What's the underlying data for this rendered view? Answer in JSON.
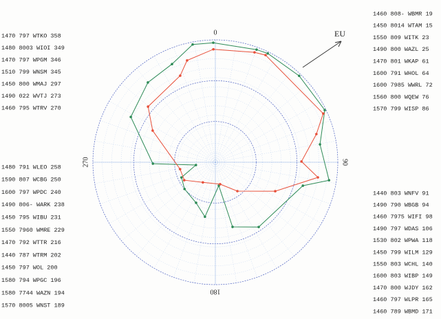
{
  "chart_data": {
    "type": "polar",
    "rlim": [
      0,
      3
    ],
    "rticks": [
      1,
      2,
      3
    ],
    "angle_ticks": [
      0,
      90,
      180,
      270
    ],
    "annotation": "EU",
    "series": [
      {
        "color": "#2e8b57",
        "theta": [
          359,
          20.1,
          25.7,
          44.1,
          64.5,
          80.3,
          99,
          105,
          146.2,
          165.1,
          171.6,
          190.8,
          205.4,
          229,
          245.8,
          261.9,
          268.7,
          298.2,
          319.8,
          336.2,
          349.1
        ],
        "r": [
          2.93,
          2.94,
          2.96,
          2.95,
          2.97,
          2.6,
          2.82,
          2.22,
          1.91,
          1.64,
          0.58,
          1.36,
          1.1,
          1.0,
          0.91,
          0.48,
          1.53,
          2.35,
          2.56,
          2.63,
          2.94
        ]
      },
      {
        "color": "#e8503a",
        "theta": [
          359,
          19.6,
          25.1,
          65.7,
          74.4,
          89.5,
          98.4,
          115.8,
          142.7,
          167.7,
          211.8,
          240,
          258.9,
          296.8,
          309.6,
          337.9,
          344.5
        ],
        "r": [
          2.77,
          2.86,
          2.9,
          2.9,
          2.57,
          2.11,
          2.54,
          1.63,
          0.89,
          0.55,
          0.58,
          0.88,
          0.88,
          1.72,
          2.14,
          2.29,
          2.59
        ]
      }
    ]
  },
  "station_lists": [
    [
      "1470 797 WTKO 358",
      "1480 8003 WIOI 349",
      "1470 797 WPGM 346",
      "1510 799 WNSM 345",
      "1450 800 WMAJ 297",
      "1490 022 WVTJ 273",
      "1460 795 WTRV 270"
    ],
    [
      "1480 791 WLEO 258",
      "1590 807 WCBG 250",
      "1600 797 WPDC 240",
      "1490 806- WARK 238",
      "1450 795 WIBU 231",
      "1550 7960 WMRE 229",
      "1470 792 WTTR 216",
      "1440 787 WTRM 202",
      "1450 797 WOL 200",
      "1580 794 WPGC 196",
      "1580 7744 WAZN 194",
      "1570 8005 WNST 189"
    ],
    [
      "1460 808- WBMR 19",
      "1450 8014 WTAM 15",
      "1550 809 WITK 23",
      "1490 800 WAZL 25",
      "1470 801 WKAP 61",
      "1600 791 WHOL 64",
      "1600 7985 WWRL 72",
      "1560 800 WQEW 76",
      "1570 799 WISP 86"
    ],
    [
      "1440 803 WNFV 91",
      "1490 790 WBGB 94",
      "1460 7975 WIFI 98",
      "1490 797 WDAS 106",
      "1530 802 WPWA 118",
      "1450 799 WILM 129",
      "1550 803 WCHL 140",
      "1600 803 WIBP 149",
      "1470 800 WJDY 162",
      "1460 797 WLPR 165",
      "1460 789 WBMD 171"
    ]
  ]
}
